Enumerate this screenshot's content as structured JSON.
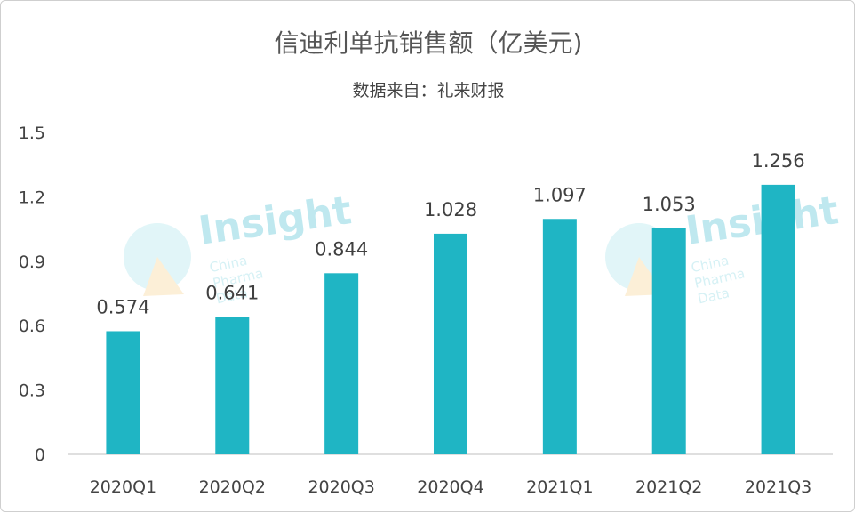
{
  "chart_data": {
    "type": "bar",
    "title": "信迪利单抗销售额（亿美元)",
    "subtitle": "数据来自：礼来财报",
    "categories": [
      "2020Q1",
      "2020Q2",
      "2020Q3",
      "2020Q4",
      "2021Q1",
      "2021Q2",
      "2021Q3"
    ],
    "values": [
      0.574,
      0.641,
      0.844,
      1.028,
      1.097,
      1.053,
      1.256
    ],
    "value_labels": [
      "0.574",
      "0.641",
      "0.844",
      "1.028",
      "1.097",
      "1.053",
      "1.256"
    ],
    "y_ticks": [
      "0",
      "0.3",
      "0.6",
      "0.9",
      "1.2",
      "1.5"
    ],
    "ylim": [
      0,
      1.5
    ],
    "grid": false,
    "bar_color": "#1fb5c4"
  },
  "watermark": {
    "brand": "Insight",
    "tagline": "China Pharma Data"
  }
}
